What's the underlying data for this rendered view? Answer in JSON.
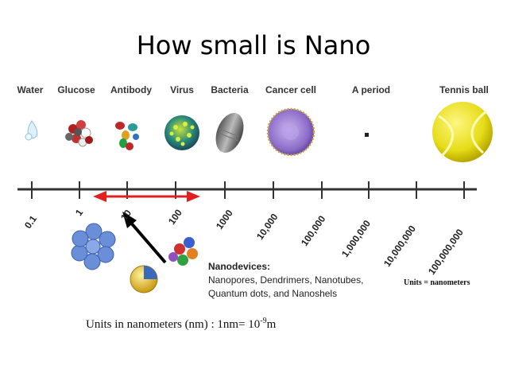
{
  "title": "How small is Nano",
  "objects": [
    {
      "label": "Water",
      "icon": "water-droplet-icon"
    },
    {
      "label": "Glucose",
      "icon": "glucose-molecule-icon"
    },
    {
      "label": "Antibody",
      "icon": "antibody-icon"
    },
    {
      "label": "Virus",
      "icon": "virus-icon"
    },
    {
      "label": "Bacteria",
      "icon": "bacteria-icon"
    },
    {
      "label": "Cancer cell",
      "icon": "cancer-cell-icon"
    },
    {
      "label": "A period",
      "icon": "period-dot-icon"
    },
    {
      "label": "Tennis ball",
      "icon": "tennis-ball-icon"
    }
  ],
  "scale_ticks": [
    "0.1",
    "1",
    "10",
    "100",
    "1000",
    "10,000",
    "100,000",
    "1,000,000",
    "10,000,000",
    "100,000,000"
  ],
  "units_right": "Units = nanometers",
  "nanodevices": {
    "heading": "Nanodevices:",
    "line1": "Nanopores, Dendrimers, Nanotubes,",
    "line2": "Quantum dots, and Nanoshels"
  },
  "units_bottom": {
    "prefix": "Units in nanometers (nm) : 1nm= 10",
    "exponent": "-9",
    "suffix": "m"
  },
  "colors": {
    "axis": "#333333",
    "nano_range_arrow": "#e02020",
    "pointer_arrow": "#000000",
    "tennis_ball": "#e8e020",
    "cancer_cell": "#9a7fd0",
    "virus": "#2a8a7a",
    "dendrimer": "#6a8fd8"
  }
}
